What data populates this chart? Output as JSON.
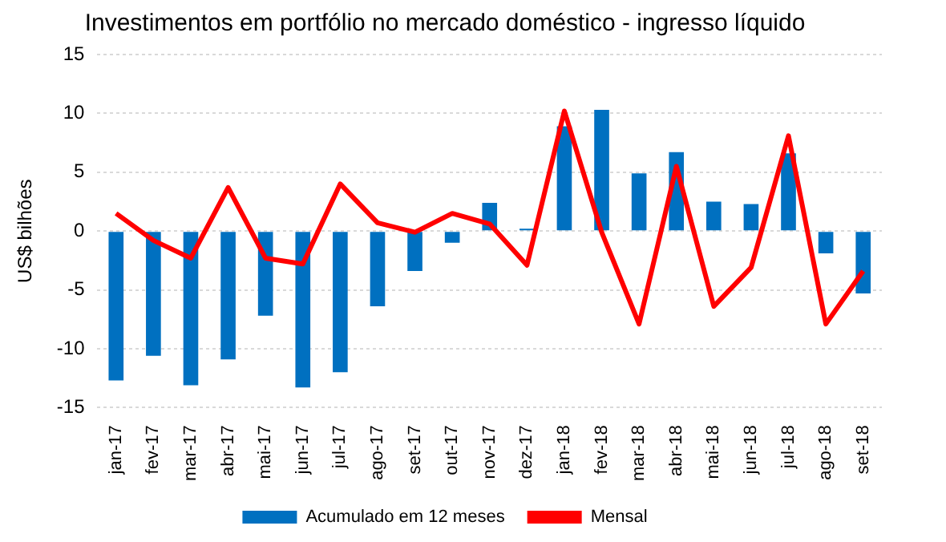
{
  "chart_data": {
    "type": "bar",
    "title": "Investimentos em portfólio no mercado doméstico - ingresso líquido",
    "ylabel": "US$ bilhões",
    "categories": [
      "jan-17",
      "fev-17",
      "mar-17",
      "abr-17",
      "mai-17",
      "jun-17",
      "jul-17",
      "ago-17",
      "set-17",
      "out-17",
      "nov-17",
      "dez-17",
      "jan-18",
      "fev-18",
      "mar-18",
      "abr-18",
      "mai-18",
      "jun-18",
      "jul-18",
      "ago-18",
      "set-18"
    ],
    "series": [
      {
        "name": "Acumulado em 12 meses",
        "color": "#0070c0",
        "values": [
          -12.7,
          -10.6,
          -13.1,
          -10.9,
          -7.2,
          -13.3,
          -12.0,
          -6.4,
          -3.4,
          -1.0,
          2.4,
          0.2,
          8.9,
          10.3,
          4.9,
          6.7,
          2.5,
          2.3,
          6.6,
          -1.9,
          -5.3
        ]
      },
      {
        "name": "Mensal",
        "type": "line",
        "color": "#ff0000",
        "values": [
          1.5,
          -0.8,
          -2.3,
          3.7,
          -2.3,
          -2.8,
          4.0,
          0.7,
          -0.1,
          1.5,
          0.6,
          -2.9,
          10.2,
          -0.1,
          -7.9,
          5.5,
          -6.4,
          -3.1,
          8.1,
          -7.9,
          -3.4
        ]
      }
    ],
    "ylim": [
      -15,
      15
    ],
    "yticks": [
      -15,
      -10,
      -5,
      0,
      5,
      10,
      15
    ],
    "grid": "y",
    "legend": "bottom",
    "marker": "none"
  }
}
